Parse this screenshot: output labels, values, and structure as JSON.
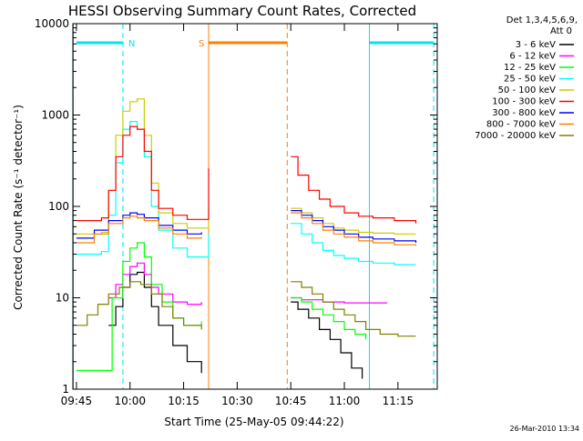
{
  "chart_data": {
    "type": "line",
    "title": "HESSI Observing Summary Count Rates, Corrected",
    "xlabel": "Start Time (25-May-05 09:44:22)",
    "ylabel": "Corrected Count Rate (s⁻¹ detector⁻¹)",
    "yscale": "log",
    "ylim": [
      1,
      10000
    ],
    "xlim": [
      "09:44",
      "11:26"
    ],
    "x_ticks": [
      "09:45",
      "10:00",
      "10:15",
      "10:30",
      "10:45",
      "11:00",
      "11:15"
    ],
    "y_ticks": [
      "1",
      "10",
      "100",
      "1000",
      "10000"
    ],
    "legend_title": [
      "Det 1,3,4,5,6,9,",
      "Att 0"
    ],
    "legend_position": "right",
    "footer": "26-Mar-2010 13:34",
    "flags": [
      {
        "label": "N",
        "start": "09:45",
        "end": "09:58",
        "color": "#00e5ee"
      },
      {
        "label": "S",
        "start": "10:22",
        "end": "10:44",
        "color": "#ff7f00"
      },
      {
        "label": "",
        "start": "11:07",
        "end": "11:25",
        "color": "#00e5ee"
      }
    ],
    "vertical_markers": [
      {
        "x": "09:44",
        "color": "#00e5ee",
        "style": "solid"
      },
      {
        "x": "09:58",
        "color": "#00e5ee",
        "style": "dashed"
      },
      {
        "x": "10:22",
        "color": "#ff7f00",
        "style": "solid"
      },
      {
        "x": "10:44",
        "color": "#ff7f00",
        "style": "dashed"
      },
      {
        "x": "11:07",
        "color": "#00e5ee",
        "style": "solid"
      },
      {
        "x": "11:25",
        "color": "#00e5ee",
        "style": "dashed"
      }
    ],
    "series": [
      {
        "name": "3 - 6 keV",
        "color": "#000000",
        "segments": [
          {
            "x": [
              "09:54",
              "09:56",
              "09:58",
              "10:00",
              "10:02",
              "10:04",
              "10:06",
              "10:08",
              "10:12",
              "10:16",
              "10:20"
            ],
            "y": [
              5,
              8,
              13,
              18,
              19,
              13,
              8,
              5,
              3,
              2,
              1.5
            ]
          },
          {
            "x": [
              "10:45",
              "10:47",
              "10:50",
              "10:53",
              "10:56",
              "10:59",
              "11:02",
              "11:05"
            ],
            "y": [
              9,
              7.5,
              6,
              4.5,
              3.5,
              2.5,
              1.7,
              1.3
            ]
          }
        ]
      },
      {
        "name": "6 - 12 keV",
        "color": "#ff00ff",
        "segments": [
          {
            "x": [
              "09:54",
              "09:56",
              "09:58",
              "10:00",
              "10:02",
              "10:04",
              "10:06",
              "10:08",
              "10:12",
              "10:16",
              "10:20"
            ],
            "y": [
              10,
              14,
              18,
              22,
              24,
              18,
              13,
              11,
              9,
              8.5,
              9
            ]
          },
          {
            "x": [
              "10:45",
              "10:48",
              "10:51",
              "10:54",
              "10:57",
              "11:00",
              "11:04",
              "11:08",
              "11:12"
            ],
            "y": [
              10,
              9.5,
              9.5,
              9,
              9,
              8.8,
              8.8,
              8.8,
              8.8
            ]
          }
        ]
      },
      {
        "name": "12 - 25 keV",
        "color": "#00ff00",
        "segments": [
          {
            "x": [
              "09:45",
              "09:53",
              "09:55",
              "09:58",
              "10:00",
              "10:02",
              "10:04",
              "10:06",
              "10:09",
              "10:12",
              "10:15",
              "10:20"
            ],
            "y": [
              1.6,
              1.6,
              10,
              25,
              35,
              40,
              28,
              14,
              9,
              6,
              5,
              5.5
            ]
          },
          {
            "x": [
              "10:45",
              "10:48",
              "10:51",
              "10:54",
              "10:57",
              "11:00",
              "11:03",
              "11:06"
            ],
            "y": [
              10,
              9,
              7.5,
              6.5,
              5.5,
              4.5,
              4,
              3.5
            ]
          }
        ]
      },
      {
        "name": "25 - 50 keV",
        "color": "#00ffff",
        "segments": [
          {
            "x": [
              "09:45",
              "09:52",
              "09:54",
              "09:56",
              "09:58",
              "10:00",
              "10:02",
              "10:04",
              "10:06",
              "10:08",
              "10:12",
              "10:16",
              "10:20",
              "10:22"
            ],
            "y": [
              30,
              32,
              80,
              300,
              700,
              850,
              700,
              350,
              100,
              55,
              35,
              28,
              28,
              50
            ]
          },
          {
            "x": [
              "10:45",
              "10:48",
              "10:51",
              "10:54",
              "10:57",
              "11:00",
              "11:04",
              "11:08",
              "11:14",
              "11:20"
            ],
            "y": [
              65,
              50,
              40,
              33,
              29,
              27,
              25,
              24,
              23,
              23
            ]
          }
        ]
      },
      {
        "name": "50 - 100 keV",
        "color": "#cccc00",
        "segments": [
          {
            "x": [
              "09:45",
              "09:52",
              "09:54",
              "09:56",
              "09:58",
              "10:00",
              "10:02",
              "10:04",
              "10:06",
              "10:08",
              "10:12",
              "10:16",
              "10:20",
              "10:22"
            ],
            "y": [
              50,
              52,
              150,
              600,
              1100,
              1400,
              1500,
              600,
              180,
              85,
              65,
              58,
              58,
              100
            ]
          },
          {
            "x": [
              "10:45",
              "10:48",
              "10:51",
              "10:54",
              "10:57",
              "11:00",
              "11:04",
              "11:08",
              "11:14",
              "11:20"
            ],
            "y": [
              95,
              85,
              75,
              65,
              58,
              55,
              52,
              51,
              50,
              50
            ]
          }
        ]
      },
      {
        "name": "100 - 300 keV",
        "color": "#ff0000",
        "segments": [
          {
            "x": [
              "09:45",
              "09:52",
              "09:54",
              "09:56",
              "09:58",
              "10:00",
              "10:02",
              "10:04",
              "10:06",
              "10:08",
              "10:12",
              "10:16",
              "10:20",
              "10:22"
            ],
            "y": [
              70,
              75,
              150,
              350,
              600,
              750,
              700,
              400,
              150,
              95,
              80,
              72,
              72,
              260
            ]
          },
          {
            "x": [
              "10:45",
              "10:47",
              "10:50",
              "10:53",
              "10:56",
              "11:00",
              "11:04",
              "11:08",
              "11:14",
              "11:20"
            ],
            "y": [
              350,
              220,
              150,
              120,
              100,
              85,
              78,
              75,
              70,
              65
            ]
          }
        ]
      },
      {
        "name": "300 - 800 keV",
        "color": "#0000ff",
        "segments": [
          {
            "x": [
              "09:45",
              "09:50",
              "09:54",
              "09:58",
              "10:00",
              "10:02",
              "10:04",
              "10:08",
              "10:12",
              "10:16",
              "10:20"
            ],
            "y": [
              45,
              55,
              70,
              80,
              85,
              82,
              75,
              62,
              55,
              50,
              52
            ]
          },
          {
            "x": [
              "10:45",
              "10:48",
              "10:51",
              "10:54",
              "10:57",
              "11:00",
              "11:04",
              "11:08",
              "11:14",
              "11:20"
            ],
            "y": [
              90,
              80,
              70,
              60,
              55,
              50,
              46,
              44,
              42,
              40
            ]
          }
        ]
      },
      {
        "name": "800 - 7000 keV",
        "color": "#ff7f00",
        "segments": [
          {
            "x": [
              "09:45",
              "09:50",
              "09:54",
              "09:58",
              "10:00",
              "10:02",
              "10:04",
              "10:08",
              "10:12",
              "10:16",
              "10:20"
            ],
            "y": [
              40,
              50,
              65,
              75,
              78,
              75,
              70,
              58,
              50,
              45,
              46
            ]
          },
          {
            "x": [
              "10:45",
              "10:48",
              "10:51",
              "10:54",
              "10:57",
              "11:00",
              "11:04",
              "11:08",
              "11:14",
              "11:20"
            ],
            "y": [
              85,
              75,
              65,
              55,
              50,
              46,
              42,
              40,
              38,
              37
            ]
          }
        ]
      },
      {
        "name": "7000 - 20000 keV",
        "color": "#808000",
        "segments": [
          {
            "x": [
              "09:45",
              "09:48",
              "09:51",
              "09:54",
              "09:57",
              "10:00",
              "10:03",
              "10:06",
              "10:09",
              "10:12",
              "10:15",
              "10:20"
            ],
            "y": [
              5,
              6.5,
              8.5,
              11,
              13,
              15,
              14,
              11,
              8,
              6,
              5,
              4.5
            ]
          },
          {
            "x": [
              "10:45",
              "10:48",
              "10:51",
              "10:54",
              "10:57",
              "11:00",
              "11:03",
              "11:06",
              "11:10",
              "11:15",
              "11:20"
            ],
            "y": [
              15,
              13,
              11,
              9,
              7.5,
              6.5,
              5.5,
              4.5,
              4,
              3.8,
              3.8
            ]
          }
        ]
      }
    ]
  }
}
